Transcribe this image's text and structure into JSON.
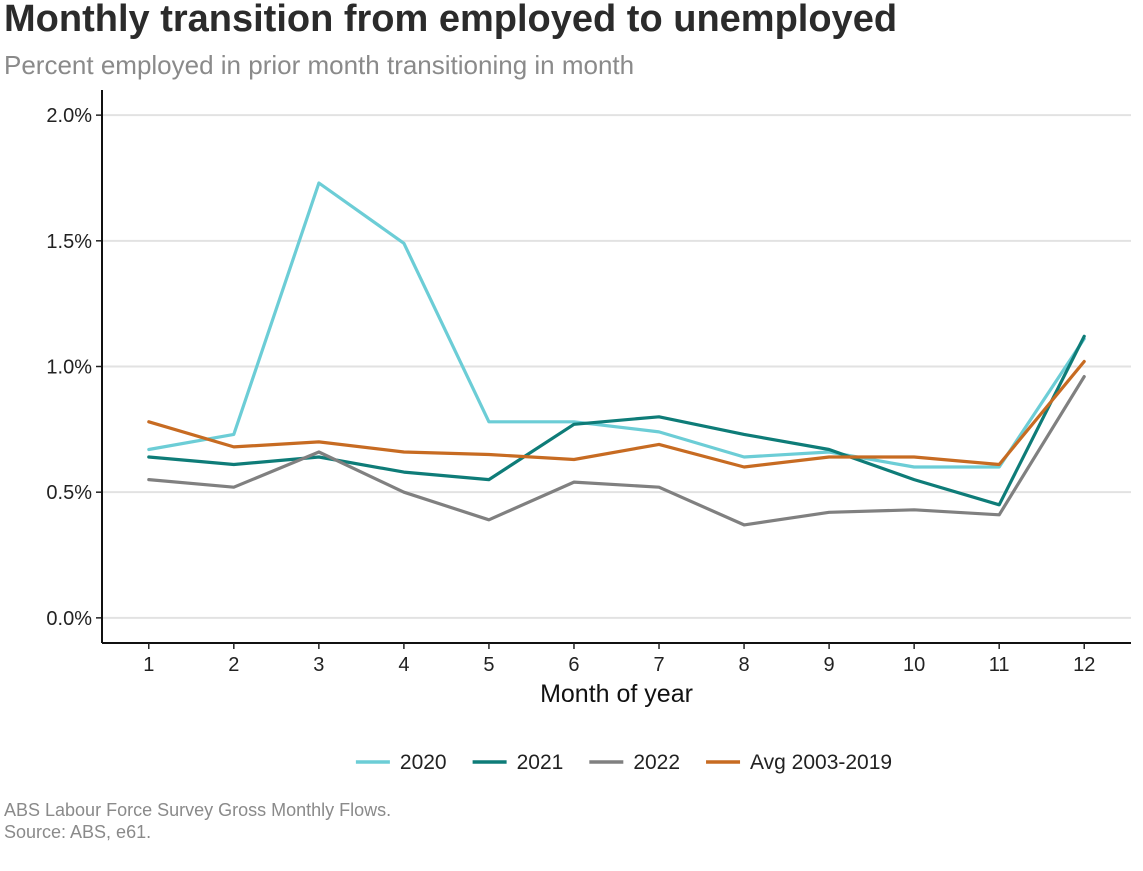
{
  "title": "Monthly transition from employed to unemployed",
  "subtitle": "Percent employed in prior month transitioning in month",
  "caption": {
    "line1": "ABS Labour Force Survey Gross Monthly Flows.",
    "line2": "Source: ABS, e61."
  },
  "colors": {
    "2020": "#6ccdd6",
    "2021": "#0e7c78",
    "2022": "#808080",
    "avg": "#c76b22"
  },
  "chart_data": {
    "type": "line",
    "title": "Monthly transition from employed to unemployed",
    "subtitle": "Percent employed in prior month transitioning in month",
    "xlabel": "Month of year",
    "ylabel": "",
    "x": [
      1,
      2,
      3,
      4,
      5,
      6,
      7,
      8,
      9,
      10,
      11,
      12
    ],
    "x_tick_labels": [
      "1",
      "2",
      "3",
      "4",
      "5",
      "6",
      "7",
      "8",
      "9",
      "10",
      "11",
      "12"
    ],
    "ylim": [
      -0.1,
      2.1
    ],
    "y_ticks": [
      0.0,
      0.5,
      1.0,
      1.5,
      2.0
    ],
    "y_tick_labels": [
      "0.0%",
      "0.5%",
      "1.0%",
      "1.5%",
      "2.0%"
    ],
    "grid": "horizontal",
    "legend_position": "bottom",
    "series": [
      {
        "name": "2020",
        "color": "#6ccdd6",
        "values": [
          0.67,
          0.73,
          1.73,
          1.49,
          0.78,
          0.78,
          0.74,
          0.64,
          0.66,
          0.6,
          0.6,
          1.11
        ]
      },
      {
        "name": "2021",
        "color": "#0e7c78",
        "values": [
          0.64,
          0.61,
          0.64,
          0.58,
          0.55,
          0.77,
          0.8,
          0.73,
          0.67,
          0.55,
          0.45,
          1.12
        ]
      },
      {
        "name": "2022",
        "color": "#808080",
        "values": [
          0.55,
          0.52,
          0.66,
          0.5,
          0.39,
          0.54,
          0.52,
          0.37,
          0.42,
          0.43,
          0.41,
          0.96
        ]
      },
      {
        "name": "Avg 2003-2019",
        "color": "#c76b22",
        "values": [
          0.78,
          0.68,
          0.7,
          0.66,
          0.65,
          0.63,
          0.69,
          0.6,
          0.64,
          0.64,
          0.61,
          1.02
        ]
      }
    ]
  }
}
